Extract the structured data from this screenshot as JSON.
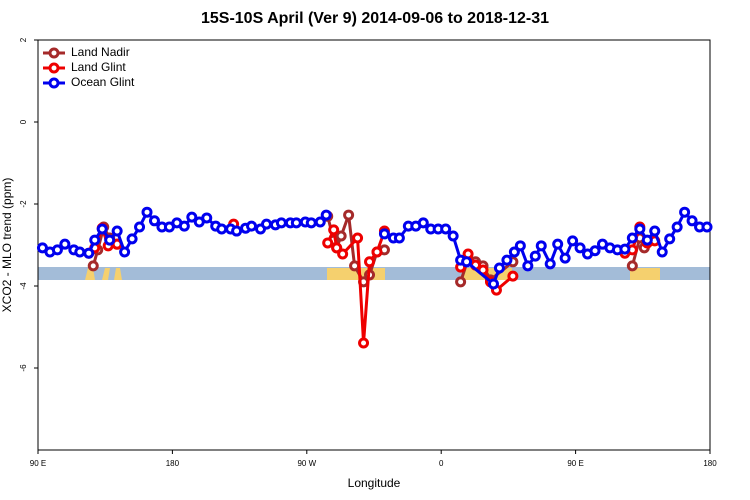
{
  "chart_data": {
    "type": "line",
    "title": "15S-10S April (Ver 9)   2014-09-06 to 2018-12-31",
    "x_label": "Longitude",
    "y_label": "XCO2 - MLO trend (ppm)",
    "xlim": [
      90,
      540
    ],
    "ylim": [
      -8,
      2
    ],
    "xticks": [
      {
        "value": 90,
        "label": "90 E"
      },
      180,
      {
        "value": 270,
        "label": "90 W"
      },
      {
        "value": 360,
        "label": "0"
      },
      {
        "value": 450,
        "label": "90 E"
      },
      {
        "value": 540,
        "label": "180"
      }
    ],
    "yticks": [
      -6,
      -4,
      -2,
      0,
      2
    ],
    "legend": "top-left",
    "series": [
      {
        "name": "Land Nadir",
        "color": "#a52a2a",
        "x": [
          127,
          130,
          134,
          138,
          143,
          200,
          284,
          288,
          290,
          293,
          298,
          302,
          308,
          312,
          317,
          322,
          340,
          373,
          378,
          383,
          388,
          393,
          408,
          450,
          488,
          493,
          496,
          501
        ],
        "values": [
          -3.51,
          -3.12,
          -2.56,
          -2.83,
          -2.98,
          null,
          -2.3,
          -2.88,
          -3.07,
          -2.78,
          -2.27,
          -3.51,
          -3.9,
          -3.73,
          -3.17,
          -3.12,
          null,
          -3.9,
          -3.34,
          -3.41,
          -3.51,
          -3.85,
          -3.41,
          null,
          -3.51,
          -2.83,
          -3.07,
          -2.88
        ]
      },
      {
        "name": "Land Glint",
        "color": "#ee0000",
        "x": [
          124,
          128,
          133,
          137,
          143,
          180,
          221,
          250,
          284,
          288,
          290,
          294,
          304,
          308,
          312,
          317,
          322,
          340,
          373,
          378,
          383,
          388,
          393,
          397,
          408,
          450,
          483,
          488,
          493,
          498,
          503
        ],
        "values": [
          -3.2,
          -3.07,
          -2.59,
          -3.02,
          -2.98,
          null,
          -2.49,
          null,
          -2.95,
          -2.63,
          -3.07,
          -3.22,
          -2.83,
          -5.39,
          -3.41,
          -3.17,
          -2.66,
          null,
          -3.54,
          -3.22,
          -3.49,
          -3.61,
          -3.9,
          -4.1,
          -3.76,
          null,
          -3.2,
          -3.12,
          -2.56,
          -2.95,
          -2.9
        ]
      },
      {
        "name": "Ocean Glint",
        "color": "#0000ee",
        "x": [
          93,
          98,
          103,
          108,
          114,
          118,
          124,
          128,
          133,
          138,
          143,
          148,
          153,
          158,
          163,
          168,
          173,
          178,
          183,
          188,
          193,
          198,
          203,
          209,
          213,
          219,
          223,
          229,
          233,
          239,
          243,
          249,
          253,
          259,
          263,
          269,
          273,
          279,
          283,
          300,
          322,
          328,
          332,
          338,
          343,
          348,
          353,
          358,
          363,
          368,
          373,
          377,
          395,
          399,
          404,
          409,
          413,
          418,
          423,
          427,
          433,
          438,
          443,
          448,
          453,
          458,
          463,
          468,
          473,
          478,
          483,
          488,
          493,
          498,
          503,
          508,
          513,
          518,
          523,
          528,
          533,
          538
        ],
        "values": [
          -3.07,
          -3.17,
          -3.12,
          -2.98,
          -3.12,
          -3.17,
          -3.2,
          -2.88,
          -2.61,
          -2.88,
          -2.66,
          -3.17,
          -2.85,
          -2.56,
          -2.2,
          -2.41,
          -2.56,
          -2.56,
          -2.46,
          -2.54,
          -2.32,
          -2.44,
          -2.34,
          -2.54,
          -2.61,
          -2.61,
          -2.66,
          -2.59,
          -2.54,
          -2.61,
          -2.49,
          -2.51,
          -2.46,
          -2.46,
          -2.46,
          -2.44,
          -2.46,
          -2.44,
          -2.27,
          null,
          -2.73,
          -2.83,
          -2.83,
          -2.54,
          -2.54,
          -2.46,
          -2.61,
          -2.61,
          -2.61,
          -2.78,
          -3.37,
          -3.41,
          -3.95,
          -3.56,
          -3.37,
          -3.17,
          -3.02,
          -3.51,
          -3.27,
          -3.02,
          -3.46,
          -2.98,
          -3.32,
          -2.9,
          -3.07,
          -3.22,
          -3.14,
          -2.98,
          -3.07,
          -3.12,
          -3.1,
          -2.83,
          -2.61,
          -2.88,
          -2.66,
          -3.17,
          -2.85,
          -2.56,
          -2.2,
          -2.41,
          -2.56,
          -2.56
        ]
      }
    ]
  }
}
